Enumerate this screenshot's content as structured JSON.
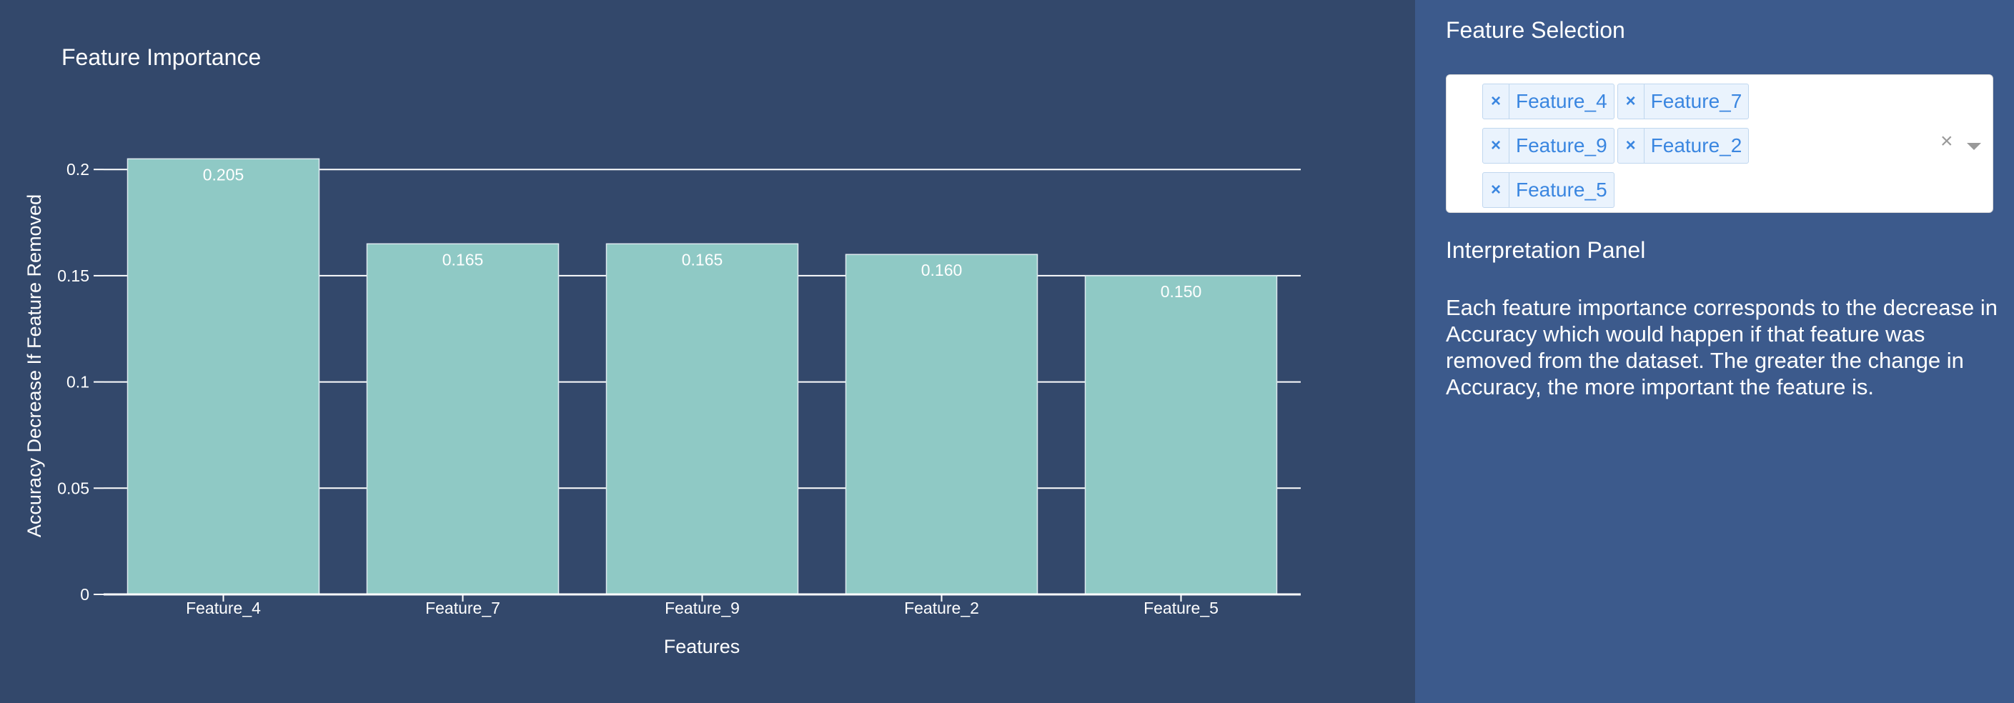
{
  "chart_data": {
    "type": "bar",
    "title": "Feature Importance",
    "xlabel": "Features",
    "ylabel": "Accuracy Decrease If Feature Removed",
    "categories": [
      "Feature_4",
      "Feature_7",
      "Feature_9",
      "Feature_2",
      "Feature_5"
    ],
    "values": [
      0.205,
      0.165,
      0.165,
      0.16,
      0.15
    ],
    "data_labels": [
      "0.205",
      "0.165",
      "0.165",
      "0.160",
      "0.150"
    ],
    "ylim": [
      0,
      0.21
    ],
    "yticks": [
      0,
      0.05,
      0.1,
      0.15,
      0.2
    ],
    "ytick_labels": [
      "0",
      "0.05",
      "0.1",
      "0.15",
      "0.2"
    ],
    "grid": true,
    "bar_color": "#8fc9c5",
    "legend": "none"
  },
  "feature_selection": {
    "title": "Feature Selection",
    "selected": [
      "Feature_4",
      "Feature_7",
      "Feature_9",
      "Feature_2",
      "Feature_5"
    ],
    "remove_glyph": "×",
    "clear_glyph": "×"
  },
  "interpretation": {
    "title": "Interpretation Panel",
    "text": "Each feature importance corresponds to the decrease in Accuracy which would happen if that feature was removed from the dataset. The greater the change in Accuracy, the more important the feature is."
  },
  "colors": {
    "chart_background": "#33486b",
    "panel_background": "#3c5a8c",
    "chip_text": "#3a86e0",
    "axis_text": "#ffffff"
  }
}
